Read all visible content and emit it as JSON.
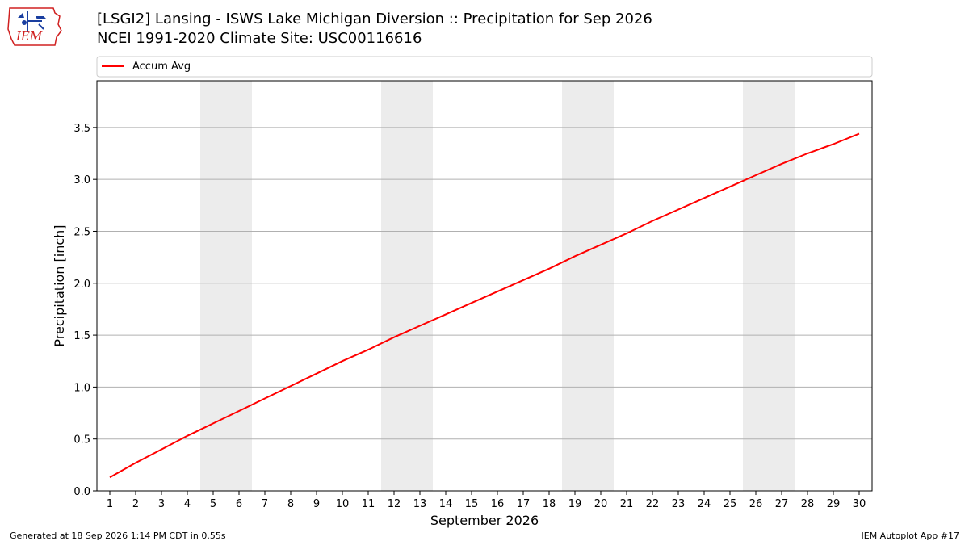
{
  "title_line1": "[LSGI2] Lansing - ISWS Lake Michigan Diversion :: Precipitation for Sep 2026",
  "title_line2": "NCEI 1991-2020 Climate Site: USC00116616",
  "logo_text": "IEM",
  "footer_left": "Generated at 18 Sep 2026 1:14 PM CDT in 0.55s",
  "footer_right": "IEM Autoplot App #17",
  "colors": {
    "line": "#ff0000",
    "weekend": "#ececec",
    "grid": "#b0b0b0"
  },
  "chart_data": {
    "type": "line",
    "xlabel": "September 2026",
    "ylabel": "Precipitation [inch]",
    "x": [
      1,
      2,
      3,
      4,
      5,
      6,
      7,
      8,
      9,
      10,
      11,
      12,
      13,
      14,
      15,
      16,
      17,
      18,
      19,
      20,
      21,
      22,
      23,
      24,
      25,
      26,
      27,
      28,
      29,
      30
    ],
    "xlim": [
      0.5,
      30.5
    ],
    "ylim": [
      0,
      3.95
    ],
    "yticks": [
      "0.0",
      "0.5",
      "1.0",
      "1.5",
      "2.0",
      "2.5",
      "3.0",
      "3.5"
    ],
    "grid": "horizontal",
    "legend": "top",
    "shaded_days": [
      [
        5,
        6
      ],
      [
        12,
        13
      ],
      [
        19,
        20
      ],
      [
        26,
        27
      ]
    ],
    "series": [
      {
        "name": "Accum Avg",
        "values": [
          0.13,
          0.27,
          0.4,
          0.53,
          0.65,
          0.77,
          0.89,
          1.01,
          1.13,
          1.25,
          1.36,
          1.48,
          1.59,
          1.7,
          1.81,
          1.92,
          2.03,
          2.14,
          2.26,
          2.37,
          2.48,
          2.6,
          2.71,
          2.82,
          2.93,
          3.04,
          3.15,
          3.25,
          3.34,
          3.44
        ]
      }
    ]
  }
}
